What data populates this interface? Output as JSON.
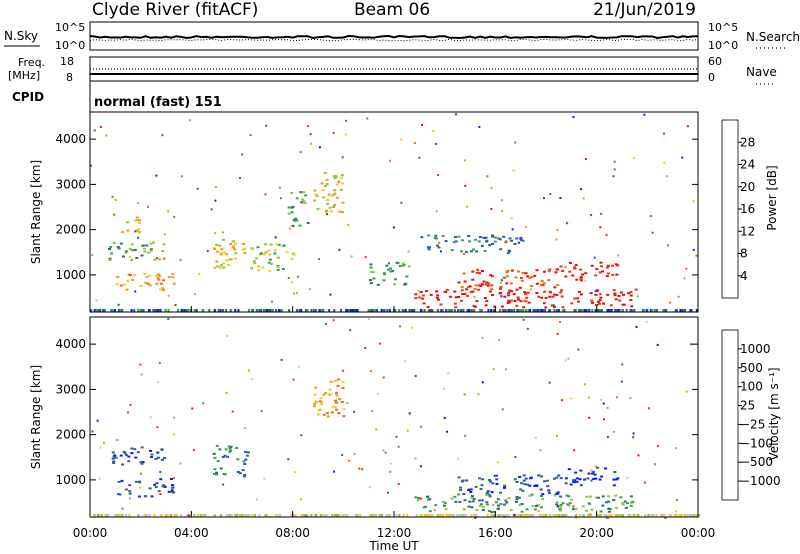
{
  "header": {
    "station": "Clyde River (fitACF)",
    "beam": "Beam 06",
    "date": "21/Jun/2019"
  },
  "noise_panel": {
    "left_label": "N.Sky",
    "right_label": "N.Search",
    "left_ticks": [
      "10^5",
      "10^0"
    ],
    "right_ticks": [
      "10^5",
      "10^0"
    ]
  },
  "freq_panel": {
    "left_label_1": "Freq.",
    "left_label_2": "[MHz]",
    "right_label": "Nave",
    "left_ticks": [
      "18",
      "8"
    ],
    "right_ticks": [
      "60",
      "0"
    ]
  },
  "cpid": {
    "label": "CPID",
    "value": "normal (fast) 151"
  },
  "chart_data": [
    {
      "type": "heatmap",
      "ylabel": "Slant Range [km]",
      "xlabel": "Time UT",
      "ylim": [
        180,
        4600
      ],
      "xlim_hours": [
        0,
        24
      ],
      "y_ticks": [
        1000,
        2000,
        3000,
        4000
      ],
      "x_tick_labels": [
        "00:00",
        "04:00",
        "08:00",
        "12:00",
        "16:00",
        "20:00",
        "00:00"
      ],
      "colorbar": {
        "label": "Power [dB]",
        "tick_labels": [
          "28",
          "24",
          "20",
          "16",
          "12",
          "8",
          "4"
        ],
        "colors": [
          "#0a1aff",
          "#2f4fb8",
          "#2f6e6e",
          "#3d9a5a",
          "#8cc63c",
          "#f2cd17",
          "#f29a14",
          "#f06a10",
          "#ef3510",
          "#e80e0e"
        ]
      },
      "echo_regions": [
        {
          "t0": 1.0,
          "t1": 3.3,
          "r0": 650,
          "r1": 1050,
          "level": 6
        },
        {
          "t0": 0.6,
          "t1": 3.0,
          "r0": 1350,
          "r1": 1750,
          "level": 3
        },
        {
          "t0": 1.2,
          "t1": 2.0,
          "r0": 1900,
          "r1": 2300,
          "level": 5
        },
        {
          "t0": 4.8,
          "t1": 6.2,
          "r0": 1100,
          "r1": 1800,
          "level": 5
        },
        {
          "t0": 6.3,
          "t1": 8.0,
          "r0": 1100,
          "r1": 1700,
          "level": 4
        },
        {
          "t0": 8.8,
          "t1": 10.0,
          "r0": 2400,
          "r1": 3300,
          "level": 5
        },
        {
          "t0": 7.8,
          "t1": 8.6,
          "r0": 2100,
          "r1": 2900,
          "level": 3
        },
        {
          "t0": 11.0,
          "t1": 12.6,
          "r0": 800,
          "r1": 1300,
          "level": 3
        },
        {
          "t0": 12.8,
          "t1": 21.5,
          "r0": 300,
          "r1": 700,
          "level": 9
        },
        {
          "t0": 14.5,
          "t1": 18.5,
          "r0": 700,
          "r1": 1150,
          "level": 8
        },
        {
          "t0": 18.5,
          "t1": 20.8,
          "r0": 900,
          "r1": 1300,
          "level": 9
        },
        {
          "t0": 13.0,
          "t1": 17.0,
          "r0": 1500,
          "r1": 1900,
          "level": 2
        }
      ]
    },
    {
      "type": "heatmap",
      "ylabel": "Slant Range [km]",
      "xlabel": "Time UT",
      "ylim": [
        180,
        4600
      ],
      "xlim_hours": [
        0,
        24
      ],
      "y_ticks": [
        1000,
        2000,
        3000,
        4000
      ],
      "x_tick_labels": [
        "00:00",
        "04:00",
        "08:00",
        "12:00",
        "16:00",
        "20:00",
        "00:00"
      ],
      "colorbar": {
        "label": "Velocity [m s⁻¹]",
        "tick_labels": [
          "1000",
          "500",
          "100",
          "25",
          "−25",
          "−100",
          "−500",
          "−1000"
        ],
        "colors": [
          "#e80e0e",
          "#ef3510",
          "#f06a10",
          "#f29a14",
          "#f2cd17",
          "#c8c8c8",
          "#8cc63c",
          "#3d9a5a",
          "#2f6e6e",
          "#2f4fb8",
          "#0a1aff"
        ]
      },
      "echo_regions": [
        {
          "t0": 1.0,
          "t1": 3.3,
          "r0": 650,
          "r1": 1050,
          "level": 9
        },
        {
          "t0": 0.6,
          "t1": 3.0,
          "r0": 1350,
          "r1": 1750,
          "level": 9
        },
        {
          "t0": 4.8,
          "t1": 6.2,
          "r0": 1100,
          "r1": 1800,
          "level": 8
        },
        {
          "t0": 8.8,
          "t1": 10.0,
          "r0": 2400,
          "r1": 3300,
          "level": 3
        },
        {
          "t0": 12.8,
          "t1": 21.5,
          "r0": 300,
          "r1": 700,
          "level": 7
        },
        {
          "t0": 14.5,
          "t1": 18.5,
          "r0": 700,
          "r1": 1150,
          "level": 9
        },
        {
          "t0": 18.5,
          "t1": 20.8,
          "r0": 900,
          "r1": 1300,
          "level": 10
        },
        {
          "t0": 19.0,
          "t1": 21.0,
          "r0": 180,
          "r1": 260,
          "level": 3
        }
      ]
    }
  ]
}
